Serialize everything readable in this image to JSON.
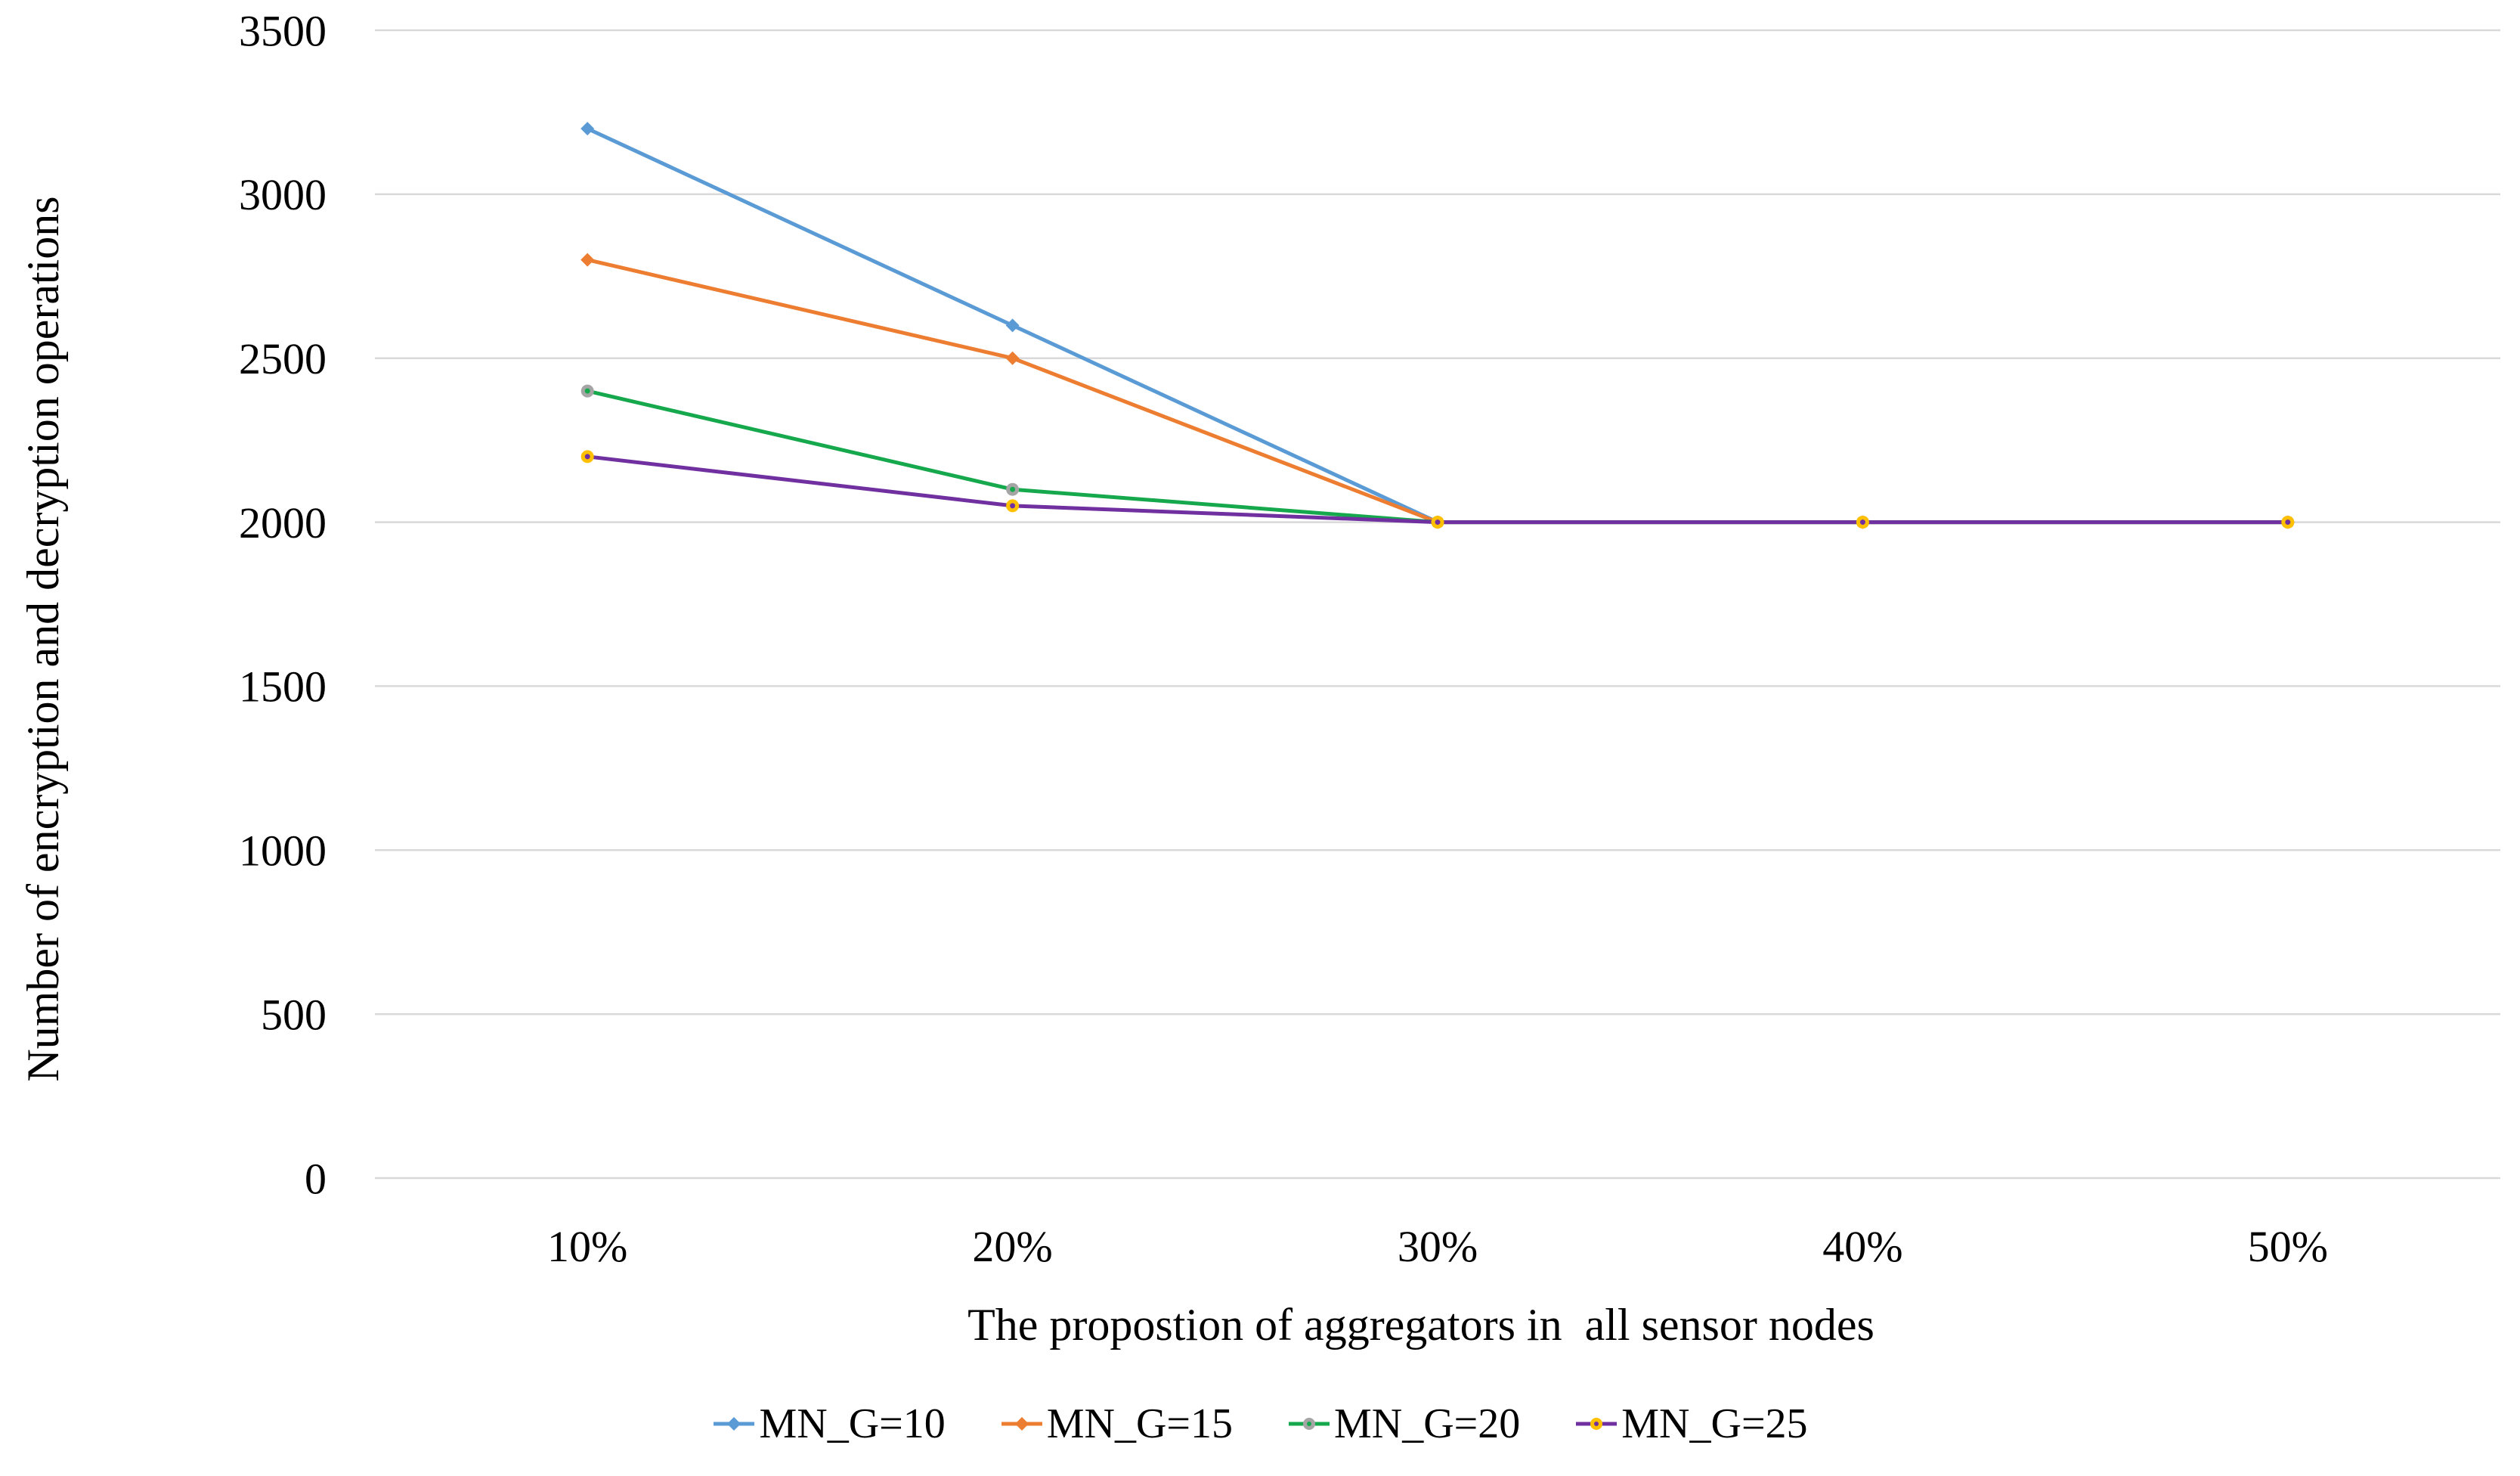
{
  "figure": {
    "background": "#FFFFFF",
    "text_color": "#000000"
  },
  "chart_data": {
    "type": "line",
    "title": "",
    "xlabel": "The propostion of aggregators in  all sensor nodes",
    "ylabel": "Number of encryption and decryption operations",
    "categories": [
      "10%",
      "20%",
      "30%",
      "40%",
      "50%"
    ],
    "y_ticks": [
      0,
      500,
      1000,
      1500,
      2000,
      2500,
      3000,
      3500
    ],
    "ylim": [
      0,
      3500
    ],
    "grid": "horizontal-only",
    "gridline_color": "#D9D9D9",
    "axis_line_color": "#D9D9D9",
    "legend_position": "bottom-center",
    "series": [
      {
        "name": "MN_G=10",
        "color": "#5B9BD5",
        "marker_color": "#5B9BD5",
        "marker_shape": "diamond",
        "values": [
          3200,
          2600,
          2000,
          2000,
          2000
        ]
      },
      {
        "name": "MN_G=15",
        "color": "#ED7D31",
        "marker_color": "#ED7D31",
        "marker_shape": "diamond",
        "values": [
          2800,
          2500,
          2000,
          2000,
          2000
        ]
      },
      {
        "name": "MN_G=20",
        "color": "#16A84C",
        "marker_color": "#A5A5A5",
        "marker_shape": "circle",
        "values": [
          2400,
          2100,
          2000,
          2000,
          2000
        ]
      },
      {
        "name": "MN_G=25",
        "color": "#7030A0",
        "marker_color": "#FFC000",
        "marker_shape": "circle",
        "values": [
          2200,
          2050,
          2000,
          2000,
          2000
        ]
      }
    ]
  }
}
